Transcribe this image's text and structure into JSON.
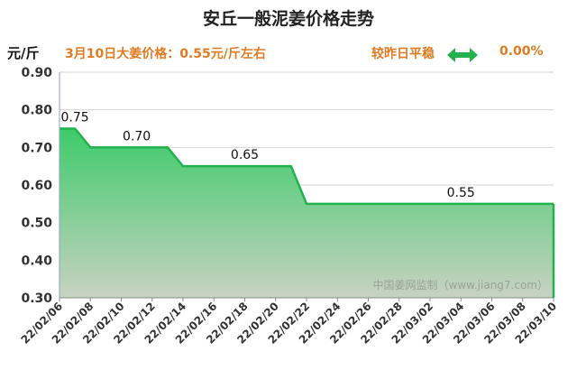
{
  "title": "安丘一般泥姜价格走势",
  "header": {
    "unit": "元/斤",
    "price_info": "3月10日大姜价格：0.55元/斤左右",
    "change_label": "较昨日平稳",
    "change_icon": "double-arrow-icon",
    "change_value": "0.00%"
  },
  "colors": {
    "accent": "#e07b22",
    "line": "#22b14c",
    "fill_top": "#3ecb6a",
    "fill_bottom": "#c8d2c2"
  },
  "chart_data": {
    "type": "area",
    "title": "安丘一般泥姜价格走势",
    "ylabel": "元/斤",
    "ylim": [
      0.3,
      0.9
    ],
    "yticks": [
      "0.30",
      "0.40",
      "0.50",
      "0.60",
      "0.70",
      "0.80",
      "0.90"
    ],
    "xlim": [
      "22/02/06",
      "22/03/10"
    ],
    "xticks": [
      "22/02/06",
      "22/02/08",
      "22/02/10",
      "22/02/12",
      "22/02/14",
      "22/02/16",
      "22/02/18",
      "22/02/20",
      "22/02/22",
      "22/02/24",
      "22/02/26",
      "22/02/28",
      "22/03/02",
      "22/03/04",
      "22/03/06",
      "22/03/08",
      "22/03/10"
    ],
    "series": [
      {
        "x": [
          "22/02/06",
          "22/02/07",
          "22/02/08",
          "22/02/09",
          "22/02/10",
          "22/02/11",
          "22/02/12",
          "22/02/13",
          "22/02/14",
          "22/02/15",
          "22/02/16",
          "22/02/17",
          "22/02/18",
          "22/02/19",
          "22/02/20",
          "22/02/21",
          "22/02/22",
          "22/02/23",
          "22/02/24",
          "22/02/25",
          "22/02/26",
          "22/02/27",
          "22/02/28",
          "22/03/01",
          "22/03/02",
          "22/03/03",
          "22/03/04",
          "22/03/05",
          "22/03/06",
          "22/03/07",
          "22/03/08",
          "22/03/09",
          "22/03/10"
        ],
        "values": [
          0.75,
          0.75,
          0.7,
          0.7,
          0.7,
          0.7,
          0.7,
          0.7,
          0.65,
          0.65,
          0.65,
          0.65,
          0.65,
          0.65,
          0.65,
          0.65,
          0.55,
          0.55,
          0.55,
          0.55,
          0.55,
          0.55,
          0.55,
          0.55,
          0.55,
          0.55,
          0.55,
          0.55,
          0.55,
          0.55,
          0.55,
          0.55,
          0.55
        ]
      }
    ],
    "data_labels": [
      {
        "x": "22/02/07",
        "value": 0.75,
        "text": "0.75"
      },
      {
        "x": "22/02/11",
        "value": 0.7,
        "text": "0.70"
      },
      {
        "x": "22/02/18",
        "value": 0.65,
        "text": "0.65"
      },
      {
        "x": "22/03/04",
        "value": 0.55,
        "text": "0.55"
      }
    ],
    "grid": true,
    "watermark": "中国姜网监制（www.jiang7.com）"
  }
}
